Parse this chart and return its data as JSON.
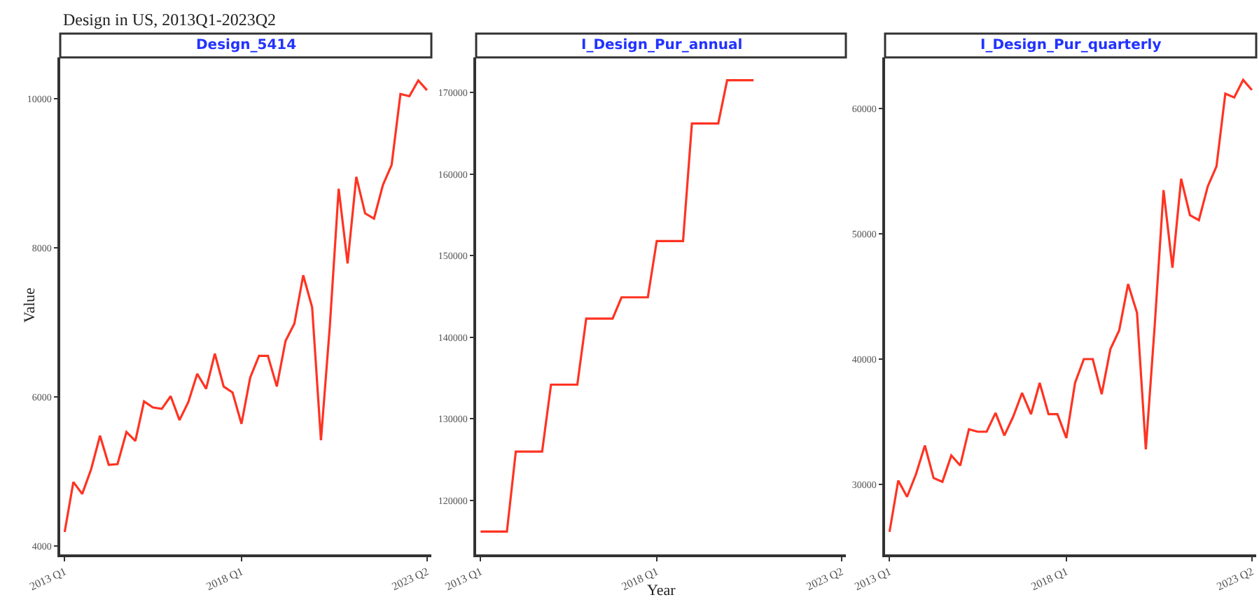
{
  "chart_data": [
    {
      "type": "line",
      "title": "Design_5414",
      "ylabel": "Value",
      "annotations": [
        "Design in US, 2013Q1-2023Q2"
      ],
      "marker": "none",
      "line_style": "solid",
      "x": [
        "2013-01",
        "2013-04",
        "2013-07",
        "2013-10",
        "2014-01",
        "2014-04",
        "2014-07",
        "2014-10",
        "2015-01",
        "2015-04",
        "2015-07",
        "2015-10",
        "2016-01",
        "2016-04",
        "2016-07",
        "2016-10",
        "2017-01",
        "2017-04",
        "2017-07",
        "2017-10",
        "2018-01",
        "2018-04",
        "2018-07",
        "2018-10",
        "2019-01",
        "2019-04",
        "2019-07",
        "2019-10",
        "2020-01",
        "2020-04",
        "2020-07",
        "2020-10",
        "2021-01",
        "2021-04",
        "2021-07",
        "2021-10",
        "2022-01",
        "2022-04",
        "2022-07",
        "2022-10",
        "2023-01",
        "2023-04"
      ],
      "series": [
        {
          "color": "#ff3322",
          "values": [
            4190,
            4860,
            4700,
            5030,
            5480,
            5090,
            5100,
            5530,
            5410,
            5940,
            5860,
            5840,
            6010,
            5690,
            5930,
            6310,
            6110,
            6580,
            6140,
            6060,
            5640,
            6260,
            6550,
            6550,
            6140,
            6750,
            6980,
            7630,
            7200,
            5420,
            6940,
            8790,
            7790,
            8950,
            8460,
            8390,
            8840,
            9110,
            10060,
            10030,
            10240,
            10110
          ]
        }
      ],
      "xlim": [
        "2012-11-16",
        "2023-05-16"
      ],
      "xticks": [
        {
          "value": "2013-01",
          "label": "2013 Q1"
        },
        {
          "value": "2018-01",
          "label": "2018 Q1"
        },
        {
          "value": "2023-04",
          "label": "2023 Q2"
        }
      ],
      "ylim": [
        3890,
        10550
      ],
      "yticks": [
        4000,
        6000,
        8000,
        10000
      ]
    },
    {
      "type": "line",
      "title": "I_Design_Pur_annual",
      "xlabel": "Year",
      "marker": "none",
      "line_style": "solid",
      "x": [
        "2013-01",
        "2013-04",
        "2013-07",
        "2013-10",
        "2014-01",
        "2014-04",
        "2014-07",
        "2014-10",
        "2015-01",
        "2015-04",
        "2015-07",
        "2015-10",
        "2016-01",
        "2016-04",
        "2016-07",
        "2016-10",
        "2017-01",
        "2017-04",
        "2017-07",
        "2017-10",
        "2018-01",
        "2018-04",
        "2018-07",
        "2018-10",
        "2019-01",
        "2019-04",
        "2019-07",
        "2019-10",
        "2020-01",
        "2020-04",
        "2020-07",
        "2020-10"
      ],
      "series": [
        {
          "color": "#ff3322",
          "values": [
            116200,
            116200,
            116200,
            116200,
            126000,
            126000,
            126000,
            126000,
            134200,
            134200,
            134200,
            134200,
            142300,
            142300,
            142300,
            142300,
            144900,
            144900,
            144900,
            144900,
            151800,
            151800,
            151800,
            151800,
            166200,
            166200,
            166200,
            166200,
            171500,
            171500,
            171500,
            171500
          ]
        }
      ],
      "xlim": [
        "2012-11-16",
        "2023-05-16"
      ],
      "xticks": [
        {
          "value": "2013-01",
          "label": "2013 Q1"
        },
        {
          "value": "2018-01",
          "label": "2018 Q1"
        },
        {
          "value": "2023-04",
          "label": "2023 Q2"
        }
      ],
      "ylim": [
        113400,
        174300
      ],
      "yticks": [
        120000,
        130000,
        140000,
        150000,
        160000,
        170000
      ]
    },
    {
      "type": "line",
      "title": "I_Design_Pur_quarterly",
      "marker": "none",
      "line_style": "solid",
      "x": [
        "2013-01",
        "2013-04",
        "2013-07",
        "2013-10",
        "2014-01",
        "2014-04",
        "2014-07",
        "2014-10",
        "2015-01",
        "2015-04",
        "2015-07",
        "2015-10",
        "2016-01",
        "2016-04",
        "2016-07",
        "2016-10",
        "2017-01",
        "2017-04",
        "2017-07",
        "2017-10",
        "2018-01",
        "2018-04",
        "2018-07",
        "2018-10",
        "2019-01",
        "2019-04",
        "2019-07",
        "2019-10",
        "2020-01",
        "2020-04",
        "2020-07",
        "2020-10",
        "2021-01",
        "2021-04",
        "2021-07",
        "2021-10",
        "2022-01",
        "2022-04",
        "2022-07",
        "2022-10",
        "2023-01",
        "2023-04"
      ],
      "series": [
        {
          "color": "#ff3322",
          "values": [
            26200,
            30300,
            29000,
            30800,
            33100,
            30500,
            30200,
            32300,
            31500,
            34400,
            34200,
            34200,
            35700,
            33900,
            35400,
            37300,
            35600,
            38100,
            35600,
            35600,
            33700,
            38100,
            40000,
            40000,
            37200,
            40800,
            42300,
            46000,
            43700,
            32800,
            42600,
            53500,
            47300,
            54400,
            51500,
            51100,
            53800,
            55400,
            61200,
            60900,
            62300,
            61500
          ]
        }
      ],
      "xlim": [
        "2012-11-16",
        "2023-05-16"
      ],
      "xticks": [
        {
          "value": "2013-01",
          "label": "2013 Q1"
        },
        {
          "value": "2018-01",
          "label": "2018 Q1"
        },
        {
          "value": "2023-04",
          "label": "2023 Q2"
        }
      ],
      "ylim": [
        24400,
        64100
      ],
      "yticks": [
        30000,
        40000,
        50000,
        60000
      ]
    }
  ]
}
